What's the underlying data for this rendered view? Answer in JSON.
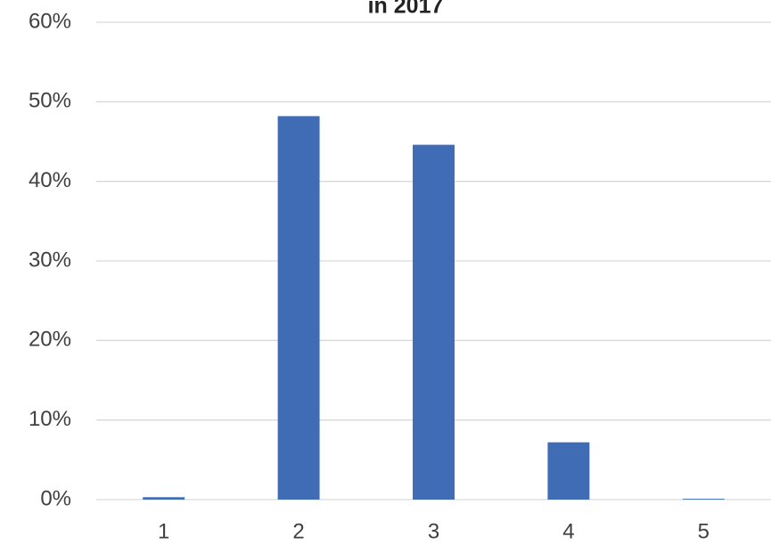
{
  "chart_data": {
    "type": "bar",
    "title": "in 2017",
    "categories": [
      "1",
      "2",
      "3",
      "4",
      "5"
    ],
    "values": [
      0.3,
      48.2,
      44.6,
      7.2,
      0.1
    ],
    "color": "#3f6cb5",
    "ylim": [
      0,
      60
    ],
    "yticks": [
      {
        "value": 0,
        "label": "0%"
      },
      {
        "value": 10,
        "label": "10%"
      },
      {
        "value": 20,
        "label": "20%"
      },
      {
        "value": 30,
        "label": "30%"
      },
      {
        "value": 40,
        "label": "40%"
      },
      {
        "value": 50,
        "label": "50%"
      },
      {
        "value": 60,
        "label": "60%"
      }
    ],
    "grid": true
  }
}
